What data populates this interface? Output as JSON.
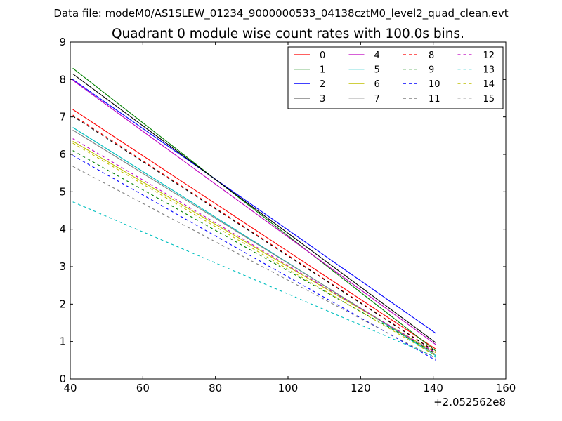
{
  "chart_data": {
    "type": "line",
    "suptitle": "Data file: modeM0/AS1SLEW_01234_9000000533_04138cztM0_level2_quad_clean.evt",
    "title": "Quadrant 0 module wise count rates with 100.0s bins.",
    "xlabel": "",
    "ylabel": "",
    "x_offset_label": "+2.052562e8",
    "xlim": [
      40,
      160
    ],
    "ylim": [
      0,
      9
    ],
    "xticks": [
      "40",
      "60",
      "80",
      "100",
      "120",
      "140",
      "160"
    ],
    "yticks": [
      "0",
      "1",
      "2",
      "3",
      "4",
      "5",
      "6",
      "7",
      "8",
      "9"
    ],
    "x": [
      40.7,
      140.7
    ],
    "series": [
      {
        "name": "0",
        "color": "#ff0000",
        "dashed": false,
        "values": [
          7.2,
          0.8
        ]
      },
      {
        "name": "1",
        "color": "#008000",
        "dashed": false,
        "values": [
          8.3,
          0.75
        ]
      },
      {
        "name": "2",
        "color": "#0000ff",
        "dashed": false,
        "values": [
          8.0,
          1.22
        ]
      },
      {
        "name": "3",
        "color": "#000000",
        "dashed": false,
        "values": [
          8.15,
          0.97
        ]
      },
      {
        "name": "4",
        "color": "#bf00bf",
        "dashed": false,
        "values": [
          7.98,
          0.92
        ]
      },
      {
        "name": "5",
        "color": "#00bfbf",
        "dashed": false,
        "values": [
          6.72,
          0.62
        ]
      },
      {
        "name": "6",
        "color": "#bfbf00",
        "dashed": false,
        "values": [
          6.35,
          0.7
        ]
      },
      {
        "name": "7",
        "color": "#808080",
        "dashed": false,
        "values": [
          6.65,
          0.65
        ]
      },
      {
        "name": "8",
        "color": "#ff0000",
        "dashed": true,
        "values": [
          7.05,
          0.73
        ]
      },
      {
        "name": "9",
        "color": "#008000",
        "dashed": true,
        "values": [
          6.1,
          0.68
        ]
      },
      {
        "name": "10",
        "color": "#0000ff",
        "dashed": true,
        "values": [
          5.97,
          0.5
        ]
      },
      {
        "name": "11",
        "color": "#000000",
        "dashed": true,
        "values": [
          7.02,
          0.72
        ]
      },
      {
        "name": "12",
        "color": "#bf00bf",
        "dashed": true,
        "values": [
          6.42,
          0.7
        ]
      },
      {
        "name": "13",
        "color": "#00bfbf",
        "dashed": true,
        "values": [
          4.73,
          0.58
        ]
      },
      {
        "name": "14",
        "color": "#bfbf00",
        "dashed": true,
        "values": [
          6.3,
          0.62
        ]
      },
      {
        "name": "15",
        "color": "#808080",
        "dashed": true,
        "values": [
          5.68,
          0.55
        ]
      }
    ],
    "legend": {
      "position": "top-right",
      "columns": 4
    }
  }
}
